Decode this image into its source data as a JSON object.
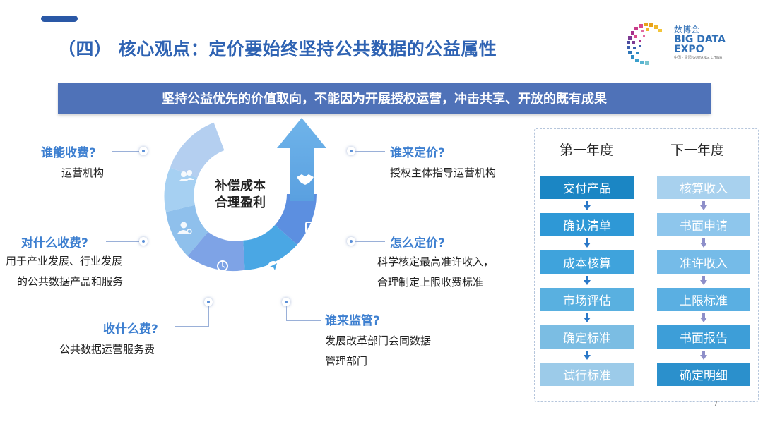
{
  "title": "（四） 核心观点：定价要始终坚持公共数据的公益属性",
  "logo": {
    "line1": "数博会",
    "line2": "BIG DATA",
    "line3": "EXPO",
    "line4": "中国 · 贵阳 GUIYANG, CHINA"
  },
  "banner": "坚持公益优先的价值取向，不能因为开展授权运营，冲击共享、开放的既有成果",
  "center": {
    "line1": "补偿成本",
    "line2": "合理盈利"
  },
  "qa": [
    {
      "q": "谁能收费?",
      "a": [
        "运营机构"
      ]
    },
    {
      "q": "对什么收费?",
      "a": [
        "用于产业发展、行业发展",
        "的公共数据产品和服务"
      ]
    },
    {
      "q": "收什么费?",
      "a": [
        "公共数据运营服务费"
      ]
    },
    {
      "q": "谁来定价?",
      "a": [
        "授权主体指导运营机构"
      ]
    },
    {
      "q": "怎么定价?",
      "a": [
        "科学核定最高准许收入，",
        "合理制定上限收费标准"
      ]
    },
    {
      "q": "谁来监管?",
      "a": [
        "发展改革部门会同数据",
        "管理部门"
      ]
    }
  ],
  "icons": [
    "team-icon",
    "user-settings-icon",
    "clock-icon",
    "send-icon",
    "checklist-icon",
    "handshake-icon"
  ],
  "process": {
    "first_year": {
      "header": "第一年度",
      "steps": [
        "交付产品",
        "确认清单",
        "成本核算",
        "市场评估",
        "确定标准",
        "试行标准"
      ],
      "colors": [
        "#1b86c4",
        "#2e98d6",
        "#3fa3dc",
        "#59b0e0",
        "#7bbde3",
        "#9ccbe9"
      ]
    },
    "next_year": {
      "header": "下一年度",
      "steps": [
        "核算收入",
        "书面申请",
        "准许收入",
        "上限标准",
        "书面报告",
        "确定明细"
      ],
      "colors": [
        "#a8d1ee",
        "#8ec6ec",
        "#75bbe8",
        "#5aafe2",
        "#3d9ed8",
        "#2b90cc"
      ]
    }
  },
  "page_number": "7"
}
